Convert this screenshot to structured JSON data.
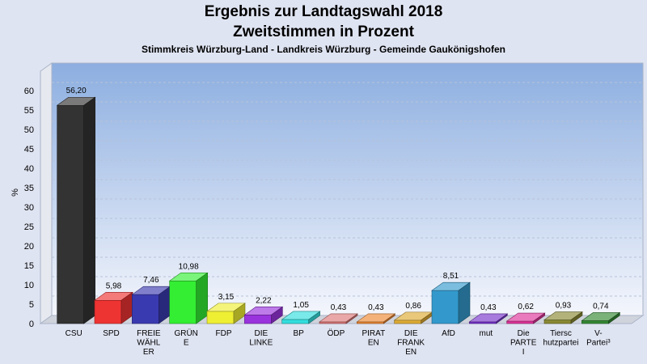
{
  "title": "Ergebnis zur Landtagswahl 2018",
  "subtitle": "Zweitstimmen in Prozent",
  "subtitle2": "Stimmkreis Würzburg-Land - Landkreis Würzburg - Gemeinde Gaukönigshofen",
  "chart_data": {
    "type": "bar",
    "ylabel": "%",
    "ylim": [
      0,
      65
    ],
    "yticks": [
      0,
      5,
      10,
      15,
      20,
      25,
      30,
      35,
      40,
      45,
      50,
      55,
      60
    ],
    "grid": true,
    "categories": [
      [
        "CSU"
      ],
      [
        "SPD"
      ],
      [
        "FREIE",
        "WÄHL",
        "ER"
      ],
      [
        "GRÜN",
        "E"
      ],
      [
        "FDP"
      ],
      [
        "DIE",
        "LINKE"
      ],
      [
        "BP"
      ],
      [
        "ÖDP"
      ],
      [
        "PIRAT",
        "EN"
      ],
      [
        "DIE",
        "FRANK",
        "EN"
      ],
      [
        "AfD"
      ],
      [
        "mut"
      ],
      [
        "Die",
        "PARTE",
        "I"
      ],
      [
        "Tiersc",
        "hutzpartei"
      ],
      [
        "V-",
        "Partei³"
      ]
    ],
    "values": [
      56.2,
      5.98,
      7.46,
      10.98,
      3.15,
      2.22,
      1.05,
      0.43,
      0.43,
      0.86,
      8.51,
      0.43,
      0.62,
      0.93,
      0.74
    ],
    "value_labels": [
      "56,20",
      "5,98",
      "7,46",
      "10,98",
      "3,15",
      "2,22",
      "1,05",
      "0,43",
      "0,43",
      "0,86",
      "8,51",
      "0,43",
      "0,62",
      "0,93",
      "0,74"
    ],
    "colors": [
      "#333333",
      "#ee3333",
      "#3a3ab0",
      "#33ee33",
      "#eeee33",
      "#9933dd",
      "#33dddd",
      "#dd7777",
      "#ee8833",
      "#ddaa33",
      "#3399cc",
      "#7733cc",
      "#dd3399",
      "#888833",
      "#338833"
    ]
  }
}
